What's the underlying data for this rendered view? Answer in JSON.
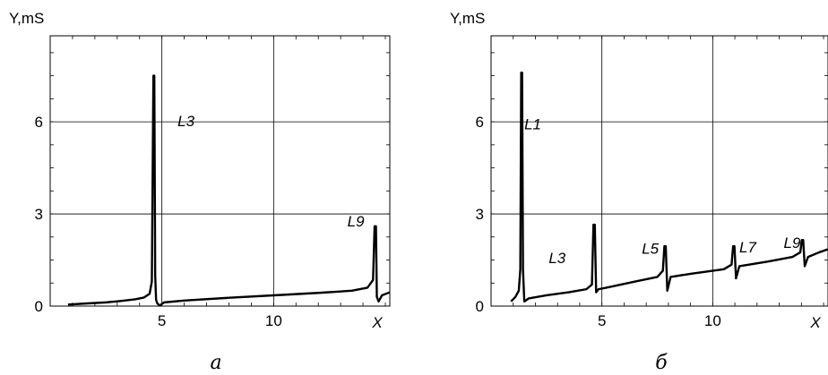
{
  "chart_data": [
    {
      "type": "line",
      "ylabel": "Y,mS",
      "xlabel": "X",
      "caption": "a",
      "xlim": [
        0,
        15.2
      ],
      "ylim": [
        0,
        8.8
      ],
      "x_ticks": [
        5,
        10
      ],
      "y_ticks": [
        0,
        3,
        6
      ],
      "grid": true,
      "series_color": "#000000",
      "annotations": [
        {
          "text": "L3",
          "x": 5.7,
          "y": 5.85
        },
        {
          "text": "L9",
          "x": 13.3,
          "y": 2.6
        }
      ],
      "series": [
        {
          "x": [
            0.8,
            1.5,
            2.5,
            3.2,
            3.8,
            4.2,
            4.45,
            4.55,
            4.62,
            4.66,
            4.7,
            4.74,
            4.8,
            4.9,
            5.1,
            6,
            8,
            10,
            12,
            13.5,
            14.2,
            14.45,
            14.52,
            14.58,
            14.62,
            14.7,
            14.85,
            15.2
          ],
          "y": [
            0.05,
            0.08,
            0.12,
            0.17,
            0.22,
            0.28,
            0.4,
            0.8,
            7.5,
            7.5,
            1.0,
            0.2,
            0.08,
            0.02,
            0.12,
            0.18,
            0.27,
            0.35,
            0.43,
            0.5,
            0.6,
            0.85,
            2.6,
            2.6,
            0.3,
            0.15,
            0.35,
            0.45
          ]
        }
      ]
    },
    {
      "type": "line",
      "ylabel": "Y,mS",
      "xlabel": "X",
      "caption": "б",
      "xlim": [
        0,
        15.2
      ],
      "ylim": [
        0,
        8.8
      ],
      "x_ticks": [
        5,
        10
      ],
      "y_ticks": [
        0,
        3,
        6
      ],
      "grid": true,
      "series_color": "#000000",
      "annotations": [
        {
          "text": "L1",
          "x": 1.5,
          "y": 5.75
        },
        {
          "text": "L3",
          "x": 2.6,
          "y": 1.4
        },
        {
          "text": "L5",
          "x": 6.8,
          "y": 1.7
        },
        {
          "text": "L7",
          "x": 11.2,
          "y": 1.75
        },
        {
          "text": "L9",
          "x": 13.2,
          "y": 1.9
        }
      ],
      "series": [
        {
          "x": [
            0.9,
            1.1,
            1.25,
            1.32,
            1.36,
            1.4,
            1.44,
            1.5,
            1.7,
            2.5,
            3.5,
            4.3,
            4.55,
            4.62,
            4.68,
            4.74,
            4.85,
            5.2,
            6.5,
            7.5,
            7.75,
            7.82,
            7.88,
            7.95,
            8.1,
            9,
            10.5,
            10.85,
            10.92,
            10.98,
            11.05,
            11.2,
            12.5,
            13.6,
            13.95,
            14.02,
            14.08,
            14.15,
            14.3,
            14.8,
            15.2
          ],
          "y": [
            0.15,
            0.3,
            0.5,
            1.2,
            7.6,
            7.6,
            1.2,
            0.15,
            0.25,
            0.35,
            0.45,
            0.55,
            0.7,
            2.65,
            2.65,
            0.45,
            0.55,
            0.6,
            0.8,
            0.95,
            1.15,
            1.95,
            1.95,
            0.5,
            0.95,
            1.05,
            1.2,
            1.35,
            1.95,
            1.95,
            0.9,
            1.3,
            1.45,
            1.6,
            1.75,
            2.15,
            2.15,
            1.3,
            1.6,
            1.75,
            1.85
          ]
        }
      ]
    }
  ]
}
